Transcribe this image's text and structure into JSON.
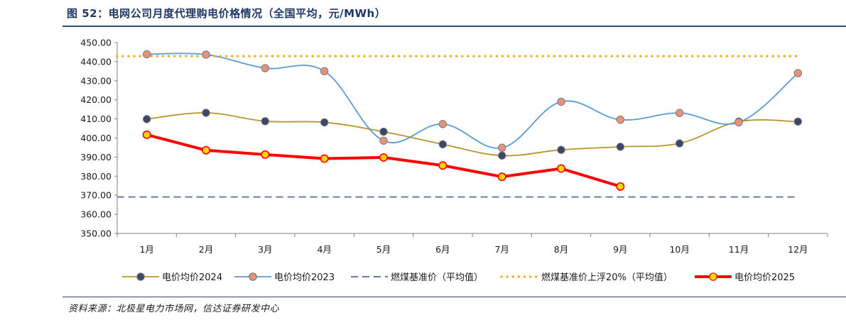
{
  "figure": {
    "title": "图 52：电网公司月度代理购电价格情况（全国平均，元/MWh）",
    "source": "资料来源：北极星电力市场网，信达证券研发中心"
  },
  "chart_data": {
    "type": "line",
    "title": "",
    "xlabel": "",
    "ylabel": "",
    "ylim": [
      350,
      450
    ],
    "yticks": [
      "350.00",
      "360.00",
      "370.00",
      "380.00",
      "390.00",
      "400.00",
      "410.00",
      "420.00",
      "430.00",
      "440.00",
      "450.00"
    ],
    "categories": [
      "1月",
      "2月",
      "3月",
      "4月",
      "5月",
      "6月",
      "7月",
      "8月",
      "9月",
      "10月",
      "11月",
      "12月"
    ],
    "grid": false,
    "legend_position": "bottom",
    "series": [
      {
        "name": "电价均价2024",
        "style": "smooth-line-marker",
        "color": "#b8962e",
        "marker_fill": "#3c4668",
        "values": [
          409.9,
          413.2,
          408.8,
          408.2,
          403.3,
          396.7,
          390.8,
          393.8,
          395.4,
          397.2,
          408.6,
          408.6
        ]
      },
      {
        "name": "电价均价2023",
        "style": "smooth-line-marker",
        "color": "#5b9bd5",
        "marker_fill": "#e8927c",
        "values": [
          443.9,
          443.7,
          436.6,
          435.0,
          398.6,
          407.3,
          394.9,
          419.0,
          409.6,
          413.1,
          408.2,
          434.0
        ]
      },
      {
        "name": "燃煤基准价（平均值）",
        "style": "dashed",
        "color": "#6f79a8",
        "values": [
          369.1,
          369.1,
          369.1,
          369.1,
          369.1,
          369.1,
          369.1,
          369.1,
          369.1,
          369.1,
          369.1,
          369.1
        ]
      },
      {
        "name": "燃煤基准价上浮20%（平均值）",
        "style": "dotted",
        "color": "#f4a90c",
        "values": [
          442.9,
          442.9,
          442.9,
          442.9,
          442.9,
          442.9,
          442.9,
          442.9,
          442.9,
          442.9,
          442.9,
          442.9
        ]
      },
      {
        "name": "电价均价2025",
        "style": "thick-line-marker",
        "color": "#ff0000",
        "marker_fill": "#ffd400",
        "values": [
          401.7,
          393.6,
          391.3,
          389.2,
          389.8,
          385.6,
          379.7,
          384.0,
          374.6,
          null,
          null,
          null
        ]
      }
    ]
  }
}
